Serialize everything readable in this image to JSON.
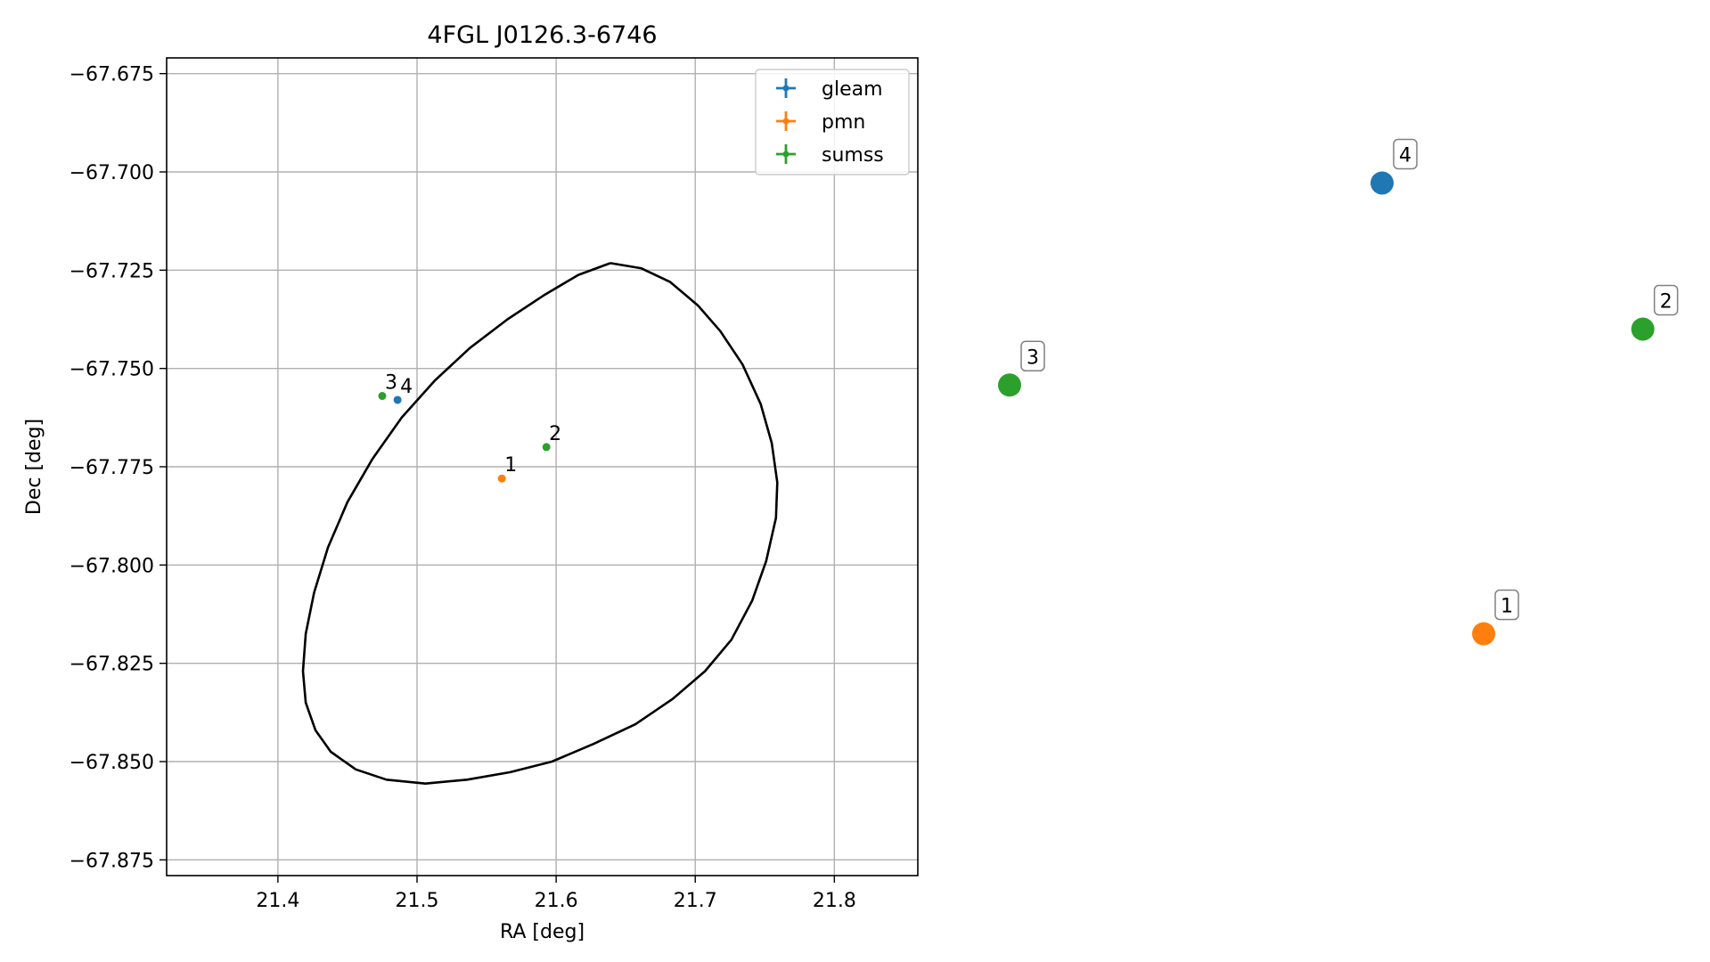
{
  "chart_data": [
    {
      "type": "scatter",
      "title": "4FGL J0126.3-6746",
      "xlabel": "RA [deg]",
      "ylabel": "Dec [deg]",
      "xlim": [
        21.32,
        21.86
      ],
      "ylim": [
        -67.879,
        -67.671
      ],
      "xticks": [
        21.4,
        21.5,
        21.6,
        21.7,
        21.8
      ],
      "xtick_labels": [
        "21.4",
        "21.5",
        "21.6",
        "21.7",
        "21.8"
      ],
      "yticks": [
        -67.675,
        -67.7,
        -67.725,
        -67.75,
        -67.775,
        -67.8,
        -67.825,
        -67.85,
        -67.875
      ],
      "ytick_labels": [
        "−67.675",
        "−67.700",
        "−67.725",
        "−67.750",
        "−67.775",
        "−67.800",
        "−67.825",
        "−67.850",
        "−67.875"
      ],
      "grid": true,
      "legend_position": "top-right",
      "series": [
        {
          "name": "gleam",
          "color": "#1f77b4",
          "points": [
            {
              "x": 21.486,
              "y": -67.758,
              "label": "4"
            }
          ]
        },
        {
          "name": "pmn",
          "color": "#ff7f0e",
          "points": [
            {
              "x": 21.561,
              "y": -67.778,
              "label": "1"
            }
          ]
        },
        {
          "name": "sumss",
          "color": "#2ca02c",
          "points": [
            {
              "x": 21.475,
              "y": -67.757,
              "label": "3"
            },
            {
              "x": 21.593,
              "y": -67.77,
              "label": "2"
            }
          ]
        }
      ],
      "ellipse": {
        "color": "#000000",
        "points": [
          [
            21.639,
            -67.7232
          ],
          [
            21.661,
            -67.7245
          ],
          [
            21.682,
            -67.728
          ],
          [
            21.702,
            -67.734
          ],
          [
            21.718,
            -67.7405
          ],
          [
            21.734,
            -67.749
          ],
          [
            21.747,
            -67.759
          ],
          [
            21.755,
            -67.769
          ],
          [
            21.759,
            -67.779
          ],
          [
            21.758,
            -67.788
          ],
          [
            21.751,
            -67.799
          ],
          [
            21.741,
            -67.809
          ],
          [
            21.726,
            -67.819
          ],
          [
            21.707,
            -67.827
          ],
          [
            21.684,
            -67.834
          ],
          [
            21.657,
            -67.8405
          ],
          [
            21.627,
            -67.8455
          ],
          [
            21.597,
            -67.85
          ],
          [
            21.567,
            -67.8527
          ],
          [
            21.536,
            -67.8546
          ],
          [
            21.506,
            -67.8556
          ],
          [
            21.478,
            -67.8546
          ],
          [
            21.456,
            -67.852
          ],
          [
            21.438,
            -67.8475
          ],
          [
            21.427,
            -67.842
          ],
          [
            21.42,
            -67.835
          ],
          [
            21.418,
            -67.827
          ],
          [
            21.42,
            -67.8175
          ],
          [
            21.426,
            -67.807
          ],
          [
            21.436,
            -67.7955
          ],
          [
            21.45,
            -67.784
          ],
          [
            21.468,
            -67.773
          ],
          [
            21.489,
            -67.7625
          ],
          [
            21.513,
            -67.753
          ],
          [
            21.538,
            -67.7448
          ],
          [
            21.565,
            -67.7375
          ],
          [
            21.592,
            -67.7312
          ],
          [
            21.616,
            -67.7262
          ],
          [
            21.639,
            -67.7232
          ]
        ]
      }
    },
    {
      "type": "scatter",
      "title": "",
      "series": [
        {
          "name": "pmn",
          "color": "#ff7f0e",
          "points": [
            {
              "x": 0.5,
              "y": -0.5,
              "label": "1"
            }
          ]
        },
        {
          "name": "sumss",
          "color": "#2ca02c",
          "points": [
            {
              "x": 0.97,
              "y": 0.48,
              "label": "2"
            },
            {
              "x": -0.9,
              "y": 0.3,
              "label": "3"
            }
          ]
        },
        {
          "name": "gleam",
          "color": "#1f77b4",
          "points": [
            {
              "x": 0.2,
              "y": 0.95,
              "label": "4"
            }
          ]
        }
      ]
    }
  ]
}
